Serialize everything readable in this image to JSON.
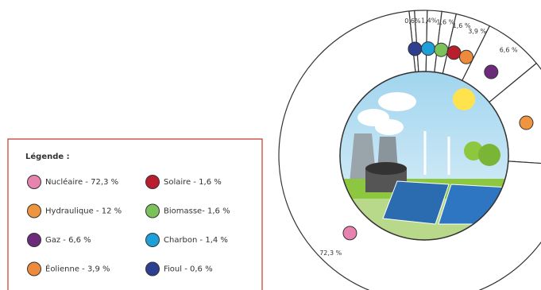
{
  "chart_data": {
    "type": "donut",
    "legend_title": "Légende :",
    "categories": [
      "Nucléaire",
      "Hydraulique",
      "Gaz",
      "Éolienne",
      "Solaire",
      "Biomasse",
      "Charbon",
      "Fioul"
    ],
    "legend_labels": [
      "Nucléaire - 72,3 %",
      "Hydraulique - 12 %",
      "Gaz - 6,6 %",
      "Éolienne - 3,9 %",
      "Solaire - 1,6 %",
      "Biomasse- 1,6 %",
      "Charbon - 1,4 %",
      "Fioul - 0,6 %"
    ],
    "values": [
      72.3,
      12,
      6.6,
      3.9,
      1.6,
      1.6,
      1.4,
      0.6
    ],
    "value_labels": [
      "72,3 %",
      "12 %",
      "6,6 %",
      "3,9 %",
      "1,6 %",
      "1,6 %",
      "1,4%",
      "0,6%"
    ],
    "colors": [
      "#e882ae",
      "#f0953f",
      "#6c2b7b",
      "#ee8a3c",
      "#b91e2c",
      "#7cc25b",
      "#1f9fd7",
      "#2d3f8e"
    ]
  }
}
